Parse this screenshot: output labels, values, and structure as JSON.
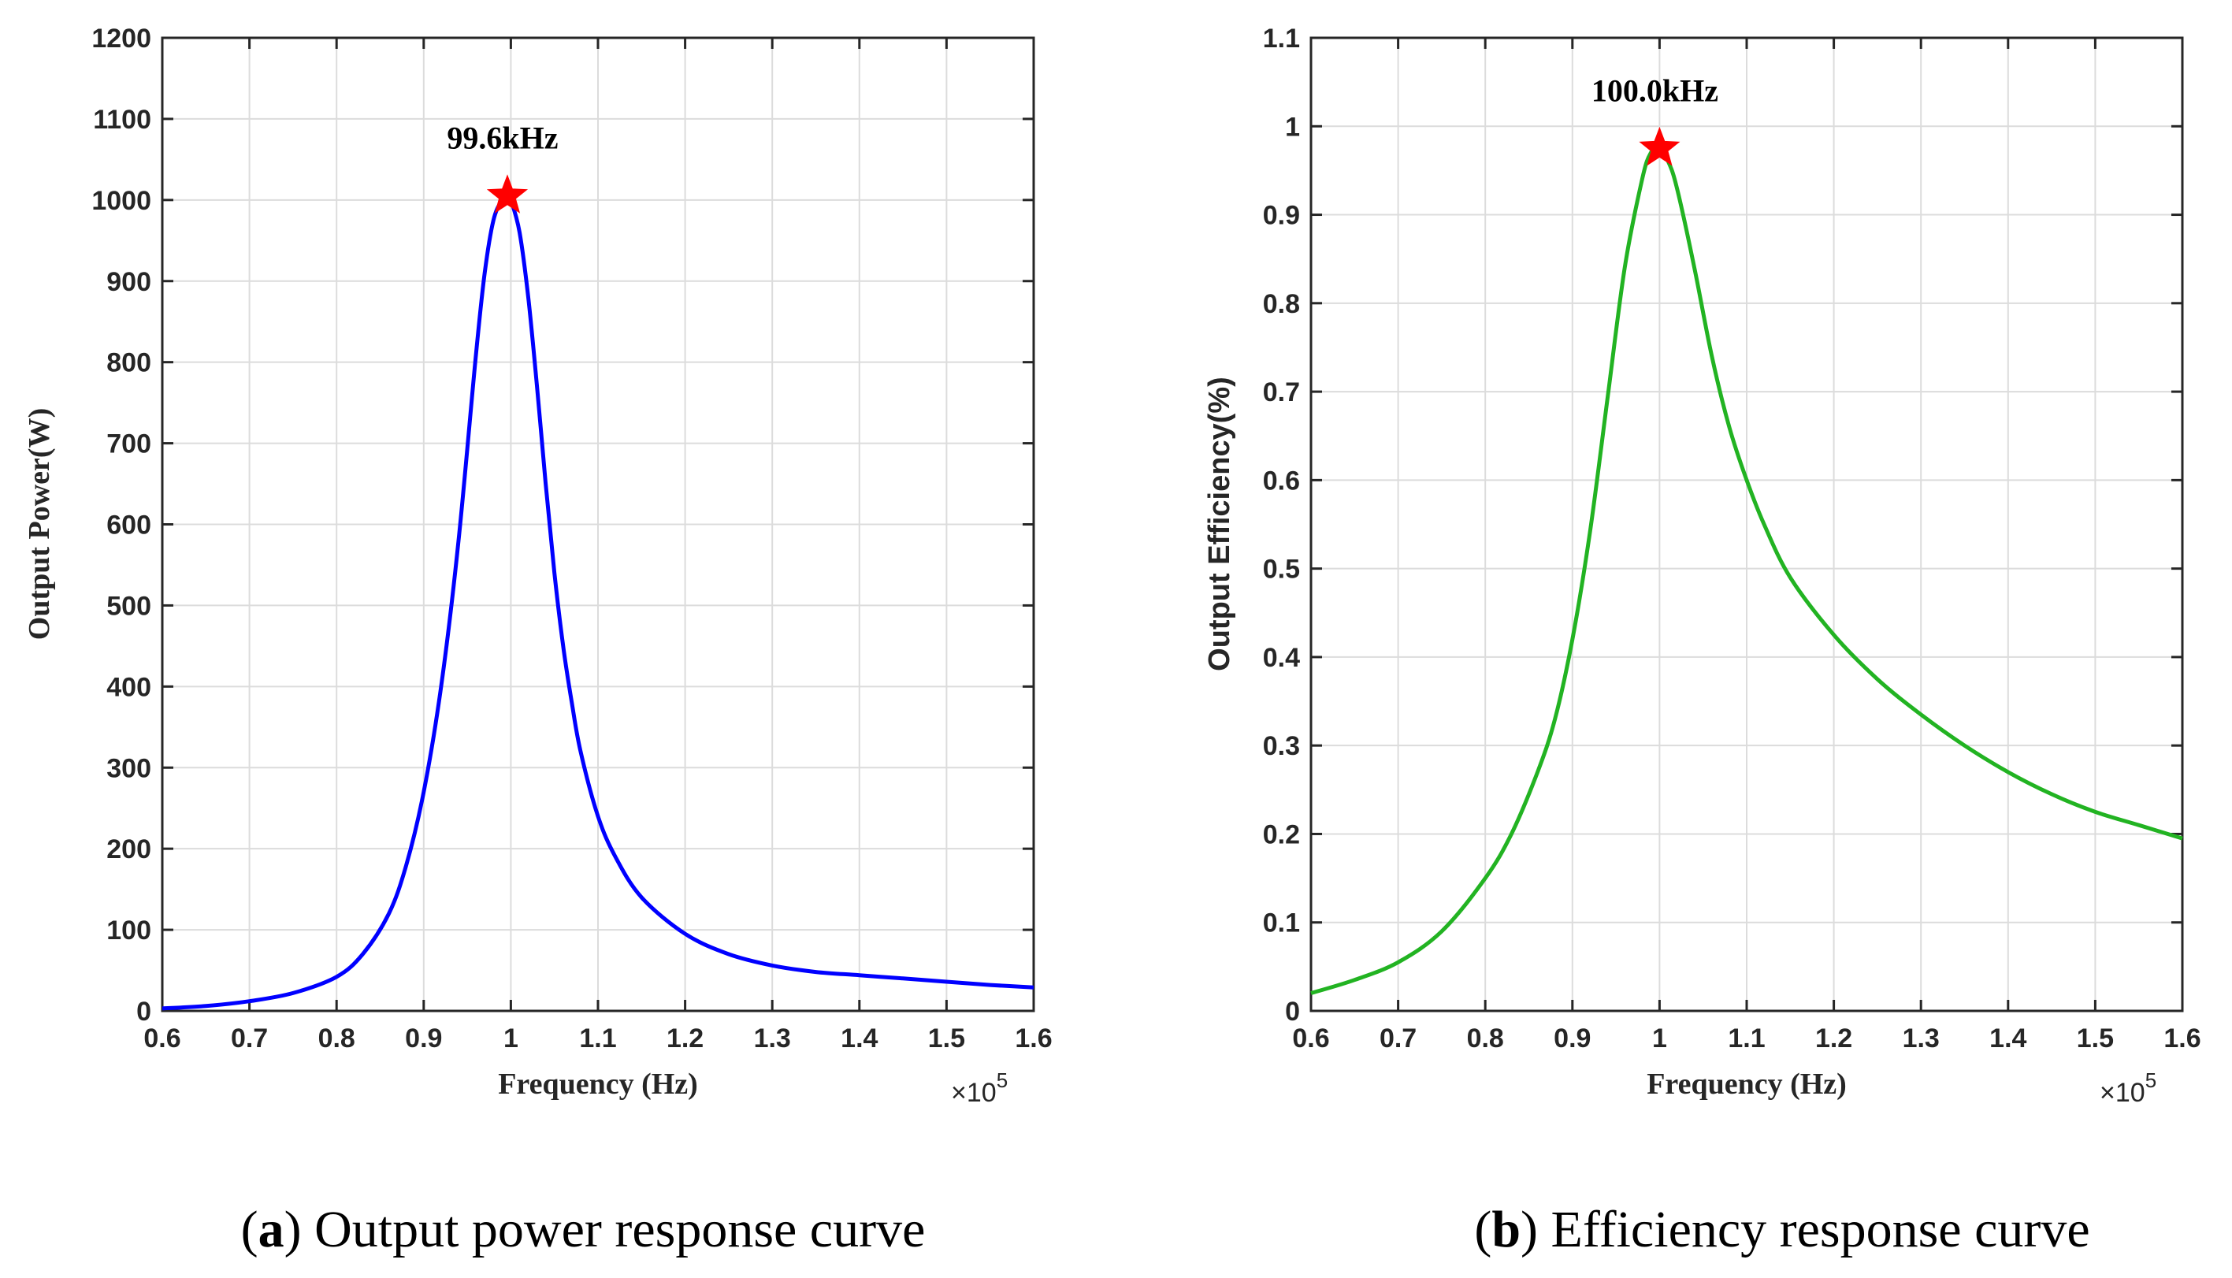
{
  "chart_data": [
    {
      "id": "a",
      "type": "line",
      "title": "",
      "xlabel": "Frequency (Hz)",
      "ylabel": "Output Power(W)",
      "x_multiplier_label": "×10",
      "x_multiplier_exp": "5",
      "xlim": [
        0.6,
        1.6
      ],
      "ylim": [
        0,
        1200
      ],
      "xticks": [
        "0.6",
        "0.7",
        "0.8",
        "0.9",
        "1",
        "1.1",
        "1.2",
        "1.3",
        "1.4",
        "1.5",
        "1.6"
      ],
      "yticks": [
        "0",
        "100",
        "200",
        "300",
        "400",
        "500",
        "600",
        "700",
        "800",
        "900",
        "1000",
        "1100",
        "1200"
      ],
      "grid": true,
      "series": [
        {
          "name": "Output power",
          "color": "#0000ff",
          "x": [
            0.6,
            0.65,
            0.7,
            0.75,
            0.8,
            0.83,
            0.86,
            0.88,
            0.9,
            0.92,
            0.94,
            0.96,
            0.97,
            0.98,
            0.99,
            0.996,
            1.0,
            1.01,
            1.02,
            1.03,
            1.04,
            1.05,
            1.06,
            1.07,
            1.08,
            1.1,
            1.12,
            1.15,
            1.2,
            1.25,
            1.3,
            1.35,
            1.4,
            1.45,
            1.5,
            1.55,
            1.6
          ],
          "values": [
            3,
            6,
            12,
            22,
            42,
            70,
            120,
            180,
            270,
            400,
            580,
            810,
            910,
            975,
            1000,
            1005,
            1000,
            960,
            880,
            770,
            650,
            540,
            450,
            380,
            320,
            240,
            190,
            140,
            95,
            70,
            56,
            48,
            44,
            40,
            36,
            32,
            29
          ]
        }
      ],
      "annotation": {
        "label": "99.6kHz",
        "x": 0.996,
        "y": 1005,
        "marker": "star",
        "color": "#ff0000"
      },
      "caption": {
        "letter": "a",
        "text": " Output power response curve"
      }
    },
    {
      "id": "b",
      "type": "line",
      "title": "",
      "xlabel": "Frequency (Hz)",
      "ylabel": "Output Efficiency(%)",
      "x_multiplier_label": "×10",
      "x_multiplier_exp": "5",
      "xlim": [
        0.6,
        1.6
      ],
      "ylim": [
        0,
        1.1
      ],
      "xticks": [
        "0.6",
        "0.7",
        "0.8",
        "0.9",
        "1",
        "1.1",
        "1.2",
        "1.3",
        "1.4",
        "1.5",
        "1.6"
      ],
      "yticks": [
        "0",
        "0.1",
        "0.2",
        "0.3",
        "0.4",
        "0.5",
        "0.6",
        "0.7",
        "0.8",
        "0.9",
        "1",
        "1.1"
      ],
      "grid": true,
      "series": [
        {
          "name": "Efficiency",
          "color": "#22b322",
          "x": [
            0.6,
            0.65,
            0.7,
            0.75,
            0.8,
            0.83,
            0.86,
            0.88,
            0.9,
            0.92,
            0.94,
            0.96,
            0.98,
            0.99,
            1.0,
            1.01,
            1.02,
            1.04,
            1.06,
            1.08,
            1.1,
            1.12,
            1.15,
            1.2,
            1.25,
            1.3,
            1.35,
            1.4,
            1.45,
            1.5,
            1.55,
            1.6
          ],
          "values": [
            0.02,
            0.035,
            0.055,
            0.09,
            0.15,
            0.2,
            0.27,
            0.33,
            0.42,
            0.54,
            0.69,
            0.84,
            0.94,
            0.97,
            0.975,
            0.96,
            0.93,
            0.84,
            0.74,
            0.66,
            0.6,
            0.55,
            0.49,
            0.425,
            0.375,
            0.335,
            0.3,
            0.27,
            0.245,
            0.225,
            0.21,
            0.195
          ]
        }
      ],
      "annotation": {
        "label": "100.0kHz",
        "x": 1.0,
        "y": 0.975,
        "marker": "star",
        "color": "#ff0000"
      },
      "caption": {
        "letter": "b",
        "text": " Efficiency response curve"
      }
    }
  ]
}
